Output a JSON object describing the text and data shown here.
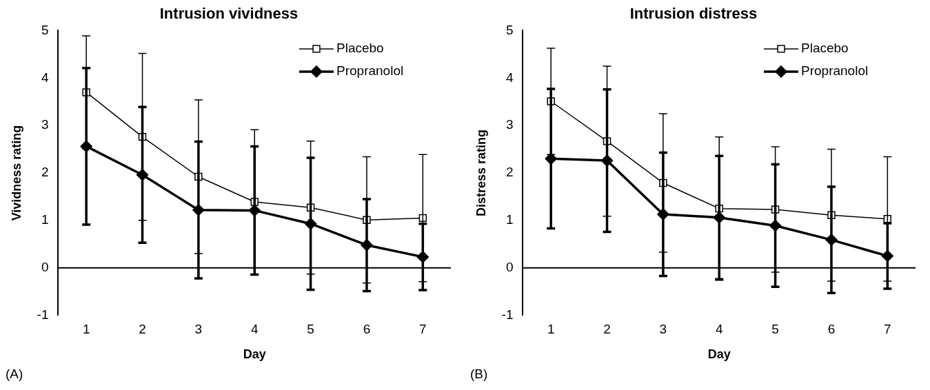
{
  "chart_data": [
    {
      "type": "line",
      "title": "Intrusion vividness",
      "xlabel": "Day",
      "ylabel": "Vividness rating",
      "categories": [
        "1",
        "2",
        "3",
        "4",
        "5",
        "6",
        "7"
      ],
      "series": [
        {
          "name": "Placebo",
          "color": "#000000",
          "marker": "square",
          "values": [
            3.7,
            2.76,
            1.92,
            1.39,
            1.27,
            1.01,
            1.05
          ],
          "errors": [
            1.19,
            1.76,
            1.62,
            1.52,
            1.4,
            1.33,
            1.34
          ]
        },
        {
          "name": "Propranolol",
          "color": "#000000",
          "marker": "diamond",
          "values": [
            2.56,
            1.96,
            1.22,
            1.21,
            0.93,
            0.48,
            0.23
          ],
          "errors": [
            1.65,
            1.43,
            1.44,
            1.35,
            1.39,
            0.97,
            0.7
          ]
        }
      ],
      "ylim": [
        -1,
        5
      ],
      "yticks": [
        -1,
        0,
        1,
        2,
        3,
        4,
        5
      ],
      "legend": "top right",
      "grid": false,
      "ref_lines": [
        {
          "axis": "y",
          "value": 0
        }
      ],
      "annotations": [
        "(A)"
      ]
    },
    {
      "type": "line",
      "title": "Intrusion distress",
      "xlabel": "Day",
      "ylabel": "Distress rating",
      "categories": [
        "1",
        "2",
        "3",
        "4",
        "5",
        "6",
        "7"
      ],
      "series": [
        {
          "name": "Placebo",
          "color": "#000000",
          "marker": "square",
          "values": [
            3.51,
            2.67,
            1.79,
            1.25,
            1.23,
            1.11,
            1.03
          ],
          "errors": [
            1.12,
            1.58,
            1.46,
            1.51,
            1.32,
            1.39,
            1.31
          ]
        },
        {
          "name": "Propranolol",
          "color": "#000000",
          "marker": "diamond",
          "values": [
            2.3,
            2.26,
            1.13,
            1.06,
            0.89,
            0.59,
            0.25
          ],
          "errors": [
            1.47,
            1.5,
            1.3,
            1.3,
            1.29,
            1.12,
            0.69
          ]
        }
      ],
      "ylim": [
        -1,
        5
      ],
      "yticks": [
        -1,
        0,
        1,
        2,
        3,
        4,
        5
      ],
      "legend": "top right",
      "grid": false,
      "ref_lines": [
        {
          "axis": "y",
          "value": 0
        }
      ],
      "annotations": [
        "(B)"
      ]
    }
  ]
}
